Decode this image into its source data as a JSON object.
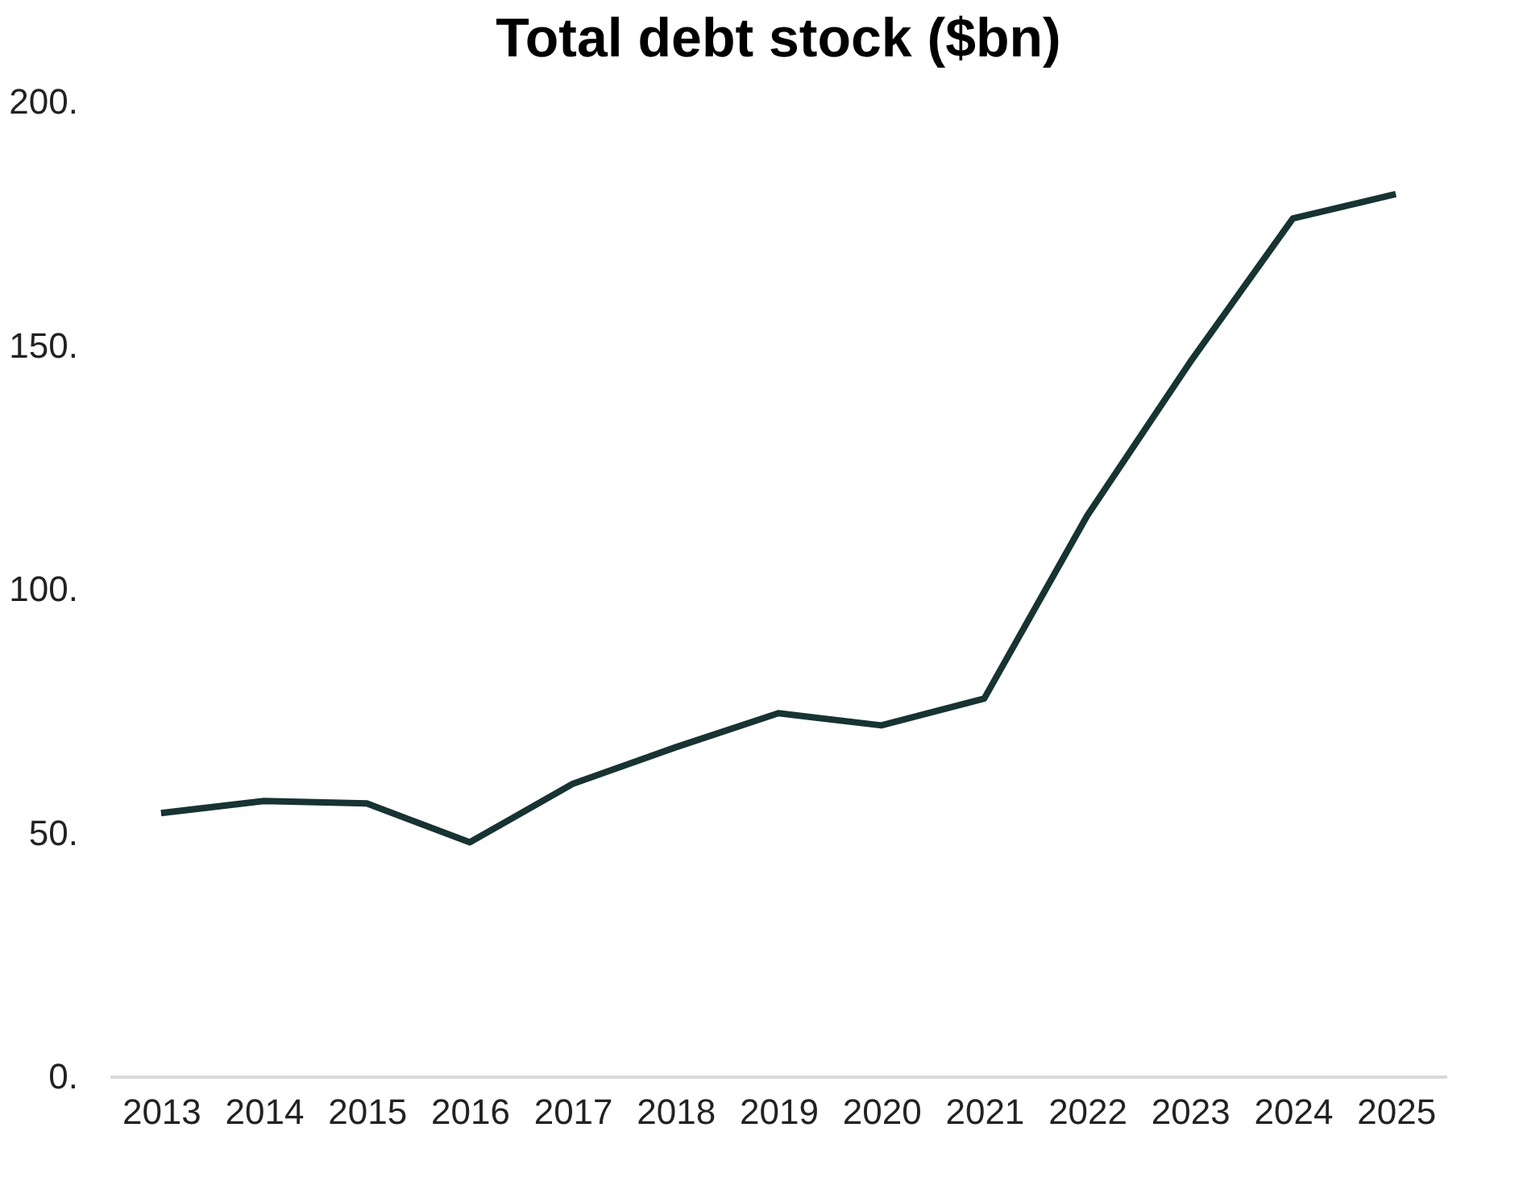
{
  "chart_data": {
    "type": "line",
    "title": "Total debt stock ($bn)",
    "categories": [
      "2013",
      "2014",
      "2015",
      "2016",
      "2017",
      "2018",
      "2019",
      "2020",
      "2021",
      "2022",
      "2023",
      "2024",
      "2025"
    ],
    "series": [
      {
        "color": "#173332",
        "values": [
          54,
          56.5,
          56,
          48,
          60,
          67.5,
          74.5,
          72,
          77.5,
          115,
          146.5,
          176,
          181
        ]
      }
    ],
    "ylim": [
      0,
      200
    ],
    "yticks": [
      {
        "value": 0,
        "label": "0."
      },
      {
        "value": 50,
        "label": "50."
      },
      {
        "value": 100,
        "label": "100."
      },
      {
        "value": 150,
        "label": "150."
      },
      {
        "value": 200,
        "label": "200."
      }
    ],
    "grid": false,
    "legend": false,
    "marker": "none",
    "line_style": "solid"
  }
}
